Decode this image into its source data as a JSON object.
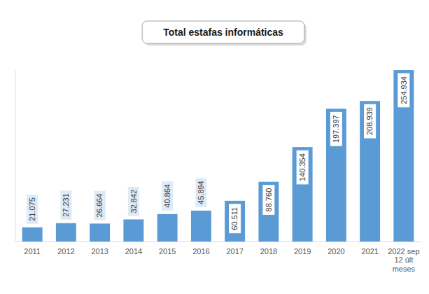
{
  "chart_data": {
    "type": "bar",
    "title": "Total estafas informáticas",
    "categories": [
      "2011",
      "2012",
      "2013",
      "2014",
      "2015",
      "2016",
      "2017",
      "2018",
      "2019",
      "2020",
      "2021",
      "2022 sep 12 últ meses"
    ],
    "values": [
      21075,
      27231,
      26664,
      32842,
      40864,
      45894,
      60511,
      88760,
      140354,
      197397,
      208939,
      254934
    ],
    "value_labels": [
      "21.075",
      "27.231",
      "26.664",
      "32.842",
      "40.864",
      "45.894",
      "60.511",
      "88.760",
      "140.354",
      "197.397",
      "208.939",
      "254.934"
    ],
    "color": "#5b9bd5",
    "ylim": [
      0,
      255000
    ],
    "yticks": [],
    "grid": false,
    "data_labels": true,
    "tick_labels": "x"
  }
}
